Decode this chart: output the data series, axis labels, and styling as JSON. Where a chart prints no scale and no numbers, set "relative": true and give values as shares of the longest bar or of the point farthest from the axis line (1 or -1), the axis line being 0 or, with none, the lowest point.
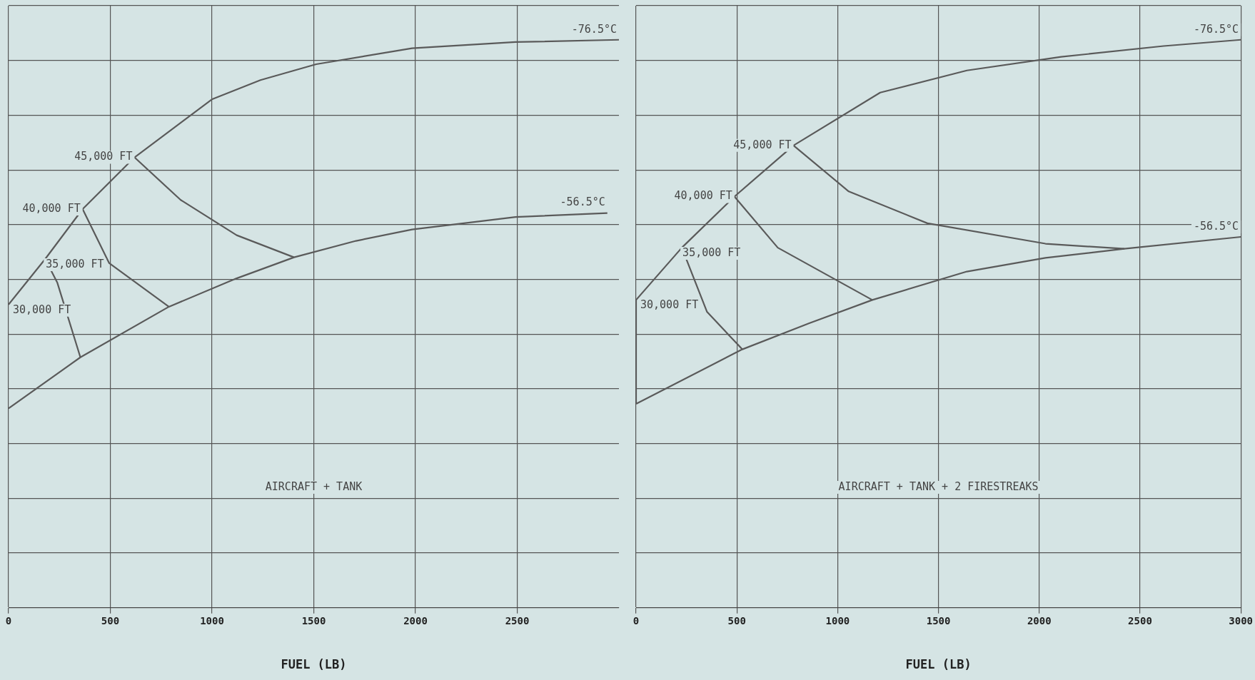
{
  "chart_data": [
    {
      "type": "line",
      "relative": true,
      "xlabel": "FUEL (LB)",
      "xlim": [
        0,
        3000
      ],
      "xticks": [
        0,
        500,
        1000,
        1500,
        2000,
        2500
      ],
      "grid": true,
      "legend": false,
      "marker": "none",
      "line_style": "solid",
      "tick_labels": "x",
      "series": [
        {
          "color": "#5a5a5a",
          "x": [
            0,
            180,
            364,
            619,
            999,
            1238,
            1512,
            1983,
            2492,
            3000
          ],
          "values": [
            0.534,
            0.614,
            0.702,
            0.793,
            0.895,
            0.929,
            0.957,
            0.985,
            0.996,
            1.0
          ]
        },
        {
          "color": "#5a5a5a",
          "x": [
            0,
            353,
            788,
            1121,
            1403,
            1708,
            1983,
            2492,
            2943
          ],
          "values": [
            0.351,
            0.441,
            0.53,
            0.58,
            0.617,
            0.646,
            0.666,
            0.688,
            0.695
          ]
        },
        {
          "color": "#5a5a5a",
          "x": [
            180,
            239,
            353
          ],
          "values": [
            0.614,
            0.573,
            0.441
          ]
        },
        {
          "color": "#5a5a5a",
          "x": [
            364,
            494,
            788
          ],
          "values": [
            0.702,
            0.607,
            0.53
          ]
        },
        {
          "color": "#5a5a5a",
          "x": [
            619,
            846,
            1121,
            1403
          ],
          "values": [
            0.793,
            0.718,
            0.656,
            0.617
          ]
        }
      ],
      "annotations": [
        {
          "text": "-76.5°C",
          "x": 3000,
          "y": 1.0
        },
        {
          "text": "-56.5°C",
          "x": 2943,
          "y": 0.695
        },
        {
          "text": "45,000 FT",
          "x": 619,
          "y": 0.793
        },
        {
          "text": "40,000 FT",
          "x": 364,
          "y": 0.702
        },
        {
          "text": "35,000 FT",
          "x": 180,
          "y": 0.614
        },
        {
          "text": "30,000 FT",
          "x": 0,
          "y": 0.534
        },
        "AIRCRAFT + TANK"
      ]
    },
    {
      "type": "line",
      "relative": true,
      "xlabel": "FUEL (LB)",
      "xlim": [
        0,
        3000
      ],
      "xticks": [
        0,
        500,
        1000,
        1500,
        2000,
        2500,
        3000
      ],
      "grid": true,
      "legend": false,
      "marker": "none",
      "line_style": "solid",
      "tick_labels": "x",
      "series": [
        {
          "color": "#5a5a5a",
          "x": [
            0,
            0,
            227,
            488,
            781,
            1211,
            1641,
            2109,
            2617,
            3000
          ],
          "values": [
            0.359,
            0.542,
            0.634,
            0.724,
            0.814,
            0.907,
            0.946,
            0.97,
            0.989,
            1.0
          ]
        },
        {
          "color": "#5a5a5a",
          "x": [
            0,
            527,
            859,
            1172,
            1641,
            2031,
            2422,
            3000
          ],
          "values": [
            0.359,
            0.455,
            0.501,
            0.542,
            0.592,
            0.616,
            0.632,
            0.653
          ]
        },
        {
          "color": "#5a5a5a",
          "x": [
            227,
            352,
            527
          ],
          "values": [
            0.634,
            0.521,
            0.455
          ]
        },
        {
          "color": "#5a5a5a",
          "x": [
            488,
            703,
            1172
          ],
          "values": [
            0.724,
            0.634,
            0.542
          ]
        },
        {
          "color": "#5a5a5a",
          "x": [
            781,
            1055,
            1445,
            2031,
            2422
          ],
          "values": [
            0.814,
            0.733,
            0.677,
            0.641,
            0.632
          ]
        }
      ],
      "annotations": [
        {
          "text": "-76.5°C",
          "x": 3000,
          "y": 1.0
        },
        {
          "text": "-56.5°C",
          "x": 3000,
          "y": 0.653
        },
        {
          "text": "45,000 FT",
          "x": 781,
          "y": 0.814
        },
        {
          "text": "40,000 FT",
          "x": 488,
          "y": 0.724
        },
        {
          "text": "35,000 FT",
          "x": 227,
          "y": 0.634
        },
        {
          "text": "30,000 FT",
          "x": 0,
          "y": 0.542
        },
        "AIRCRAFT + TANK + 2 FIRESTREAKS"
      ]
    }
  ]
}
